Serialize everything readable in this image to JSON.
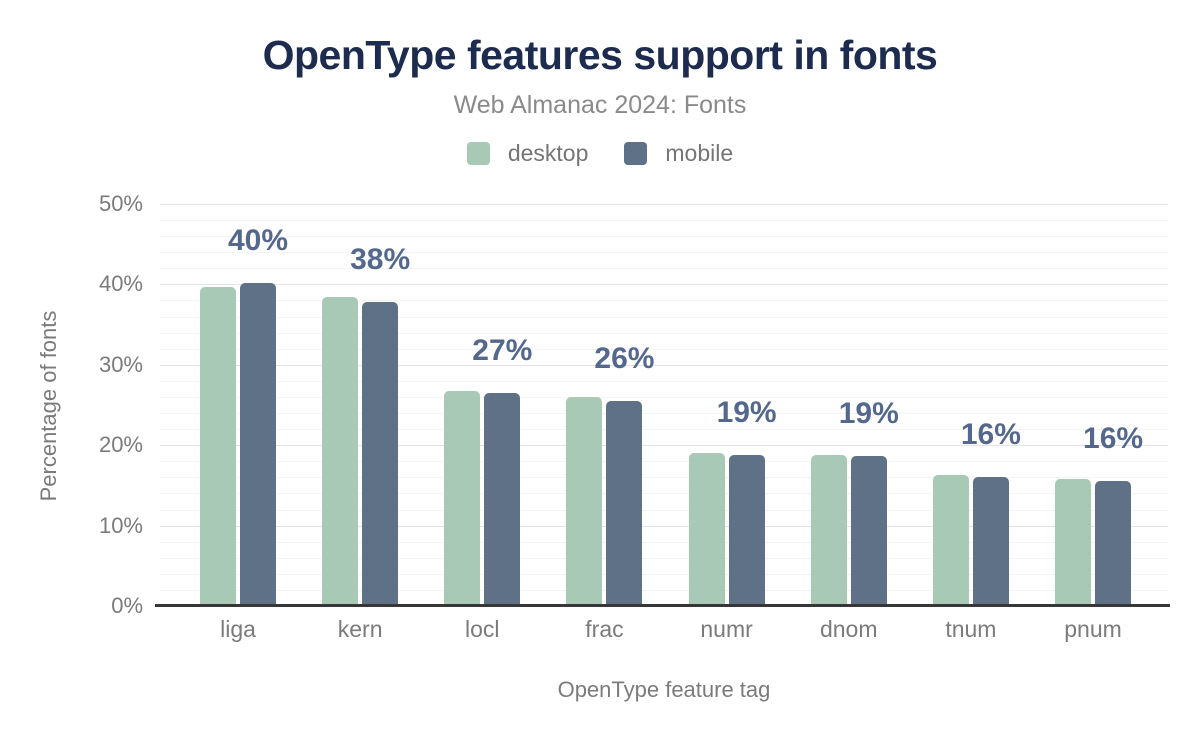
{
  "header": {
    "title": "OpenType features support in fonts",
    "subtitle": "Web Almanac 2024: Fonts"
  },
  "legend": {
    "items": [
      {
        "label": "desktop",
        "color": "#a8c9b6"
      },
      {
        "label": "mobile",
        "color": "#5e7186"
      }
    ]
  },
  "chart_data": {
    "type": "bar",
    "title": "OpenType features support in fonts",
    "subtitle": "Web Almanac 2024: Fonts",
    "xlabel": "OpenType feature tag",
    "ylabel": "Percentage of fonts",
    "categories": [
      "liga",
      "kern",
      "locl",
      "frac",
      "numr",
      "dnom",
      "tnum",
      "pnum"
    ],
    "series": [
      {
        "name": "desktop",
        "color": "#a8c9b6",
        "values": [
          39.7,
          38.4,
          26.8,
          26.0,
          19.0,
          18.8,
          16.3,
          15.8
        ]
      },
      {
        "name": "mobile",
        "color": "#5e7186",
        "values": [
          40.2,
          37.8,
          26.5,
          25.5,
          18.8,
          18.6,
          16.0,
          15.5
        ]
      }
    ],
    "data_labels": [
      "40%",
      "38%",
      "27%",
      "26%",
      "19%",
      "19%",
      "16%",
      "16%"
    ],
    "y_ticks": [
      {
        "value": 0,
        "label": "0%"
      },
      {
        "value": 10,
        "label": "10%"
      },
      {
        "value": 20,
        "label": "20%"
      },
      {
        "value": 30,
        "label": "30%"
      },
      {
        "value": 40,
        "label": "40%"
      },
      {
        "value": 50,
        "label": "50%"
      }
    ],
    "ylim": [
      0,
      50
    ],
    "grid": {
      "major_step": 10,
      "minor_step": 2,
      "major_color": "#e3e3e3",
      "minor_color": "#f4f4f4"
    },
    "legend_position": "top",
    "colors": {
      "title": "#1d2c4e",
      "subtitle": "#8a8a8a",
      "axis_text": "#7b7b7b",
      "value_label": "#54688e",
      "axis_line": "#373737"
    }
  }
}
